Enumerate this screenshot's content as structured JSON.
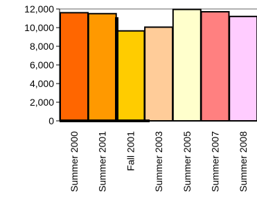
{
  "chart_data": {
    "type": "bar",
    "title": "",
    "xlabel": "",
    "ylabel": "",
    "categories": [
      "Summer 2000",
      "Summer 2001",
      "Fall 2001",
      "Summer 2003",
      "Summer 2005",
      "Summer 2007",
      "Summer 2008"
    ],
    "values": [
      11600,
      11500,
      9650,
      10050,
      11950,
      11700,
      11200
    ],
    "ylim": [
      0,
      12000
    ],
    "yticks": [
      "0",
      "2,000",
      "4,000",
      "6,000",
      "8,000",
      "10,000",
      "12,000"
    ],
    "colors": [
      "#ff6600",
      "#ff9900",
      "#ffcc00",
      "#ffcc99",
      "#ffffcc",
      "#ff8080",
      "#ffccff"
    ],
    "grid": false,
    "legend": "none"
  }
}
